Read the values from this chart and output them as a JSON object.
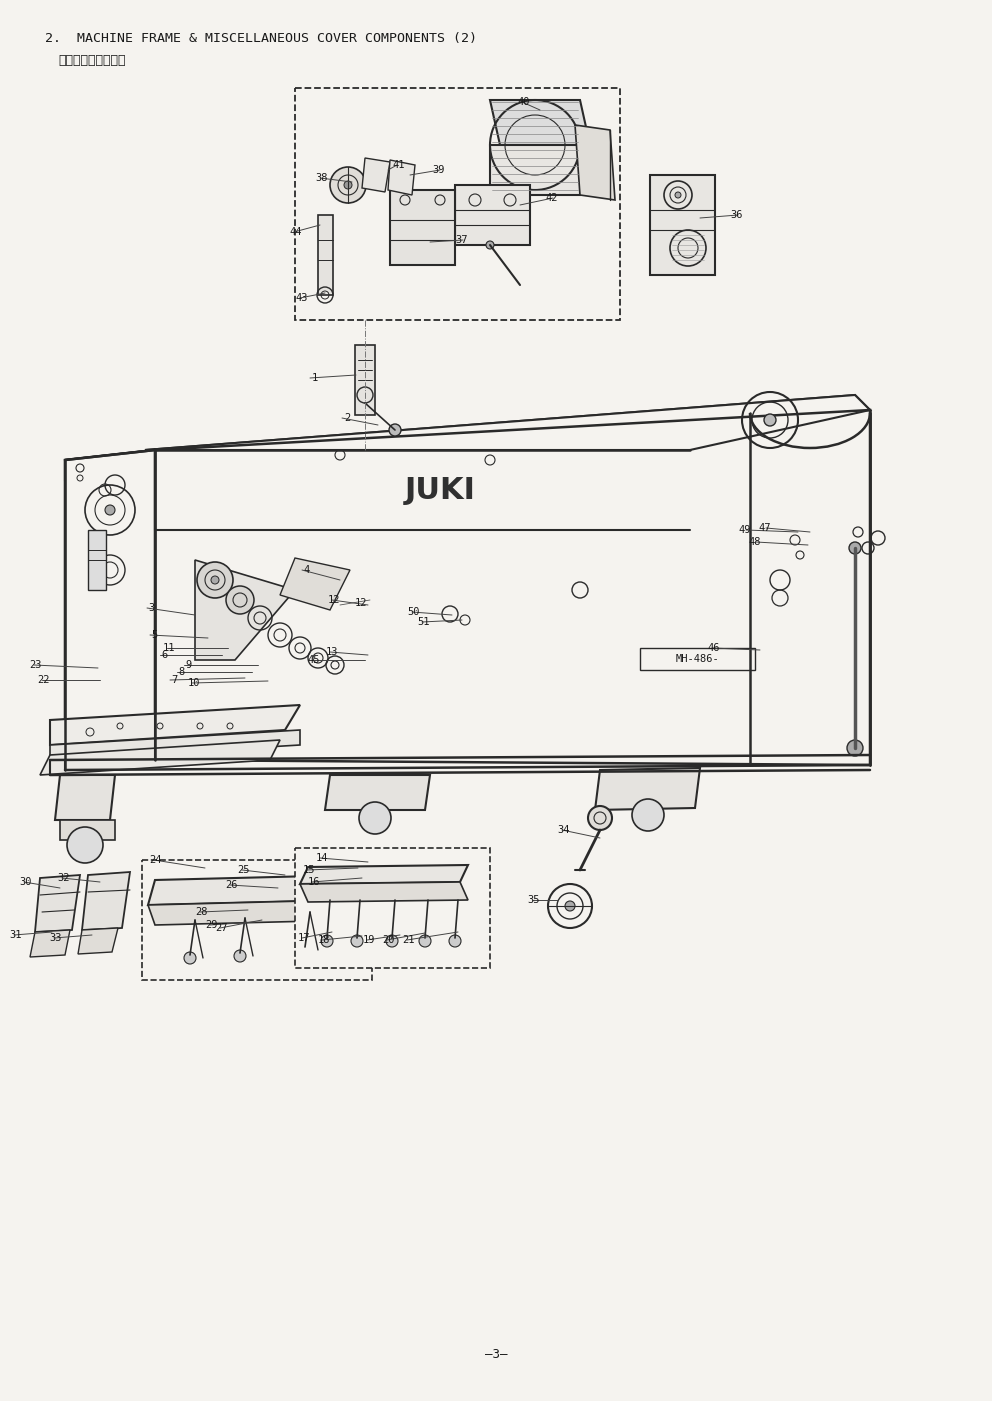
{
  "title_line1": "2.  MACHINE FRAME & MISCELLANEOUS COVER COMPONENTS (2)",
  "title_line2": "頭部外装関係（２）",
  "page_number": "—3—",
  "bg_color": "#f5f3ef",
  "line_color": "#2a2a2a",
  "text_color": "#1a1a1a",
  "brand": "JUKI",
  "model": "MH-486-",
  "figsize": [
    9.92,
    14.01
  ],
  "dpi": 100
}
